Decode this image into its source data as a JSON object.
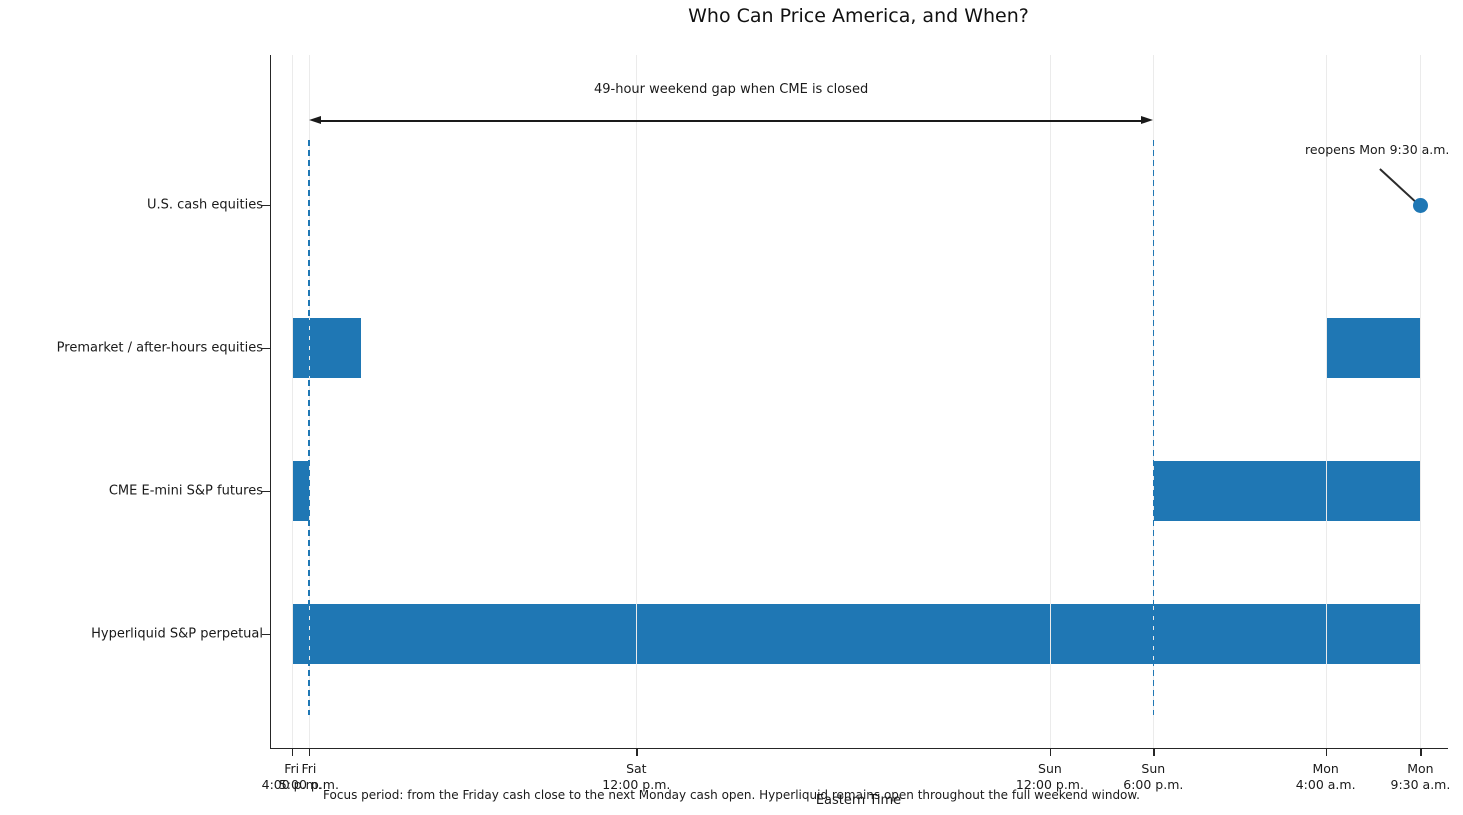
{
  "title": "Who Can Price America, and When?",
  "x_axis_title": "Eastern Time",
  "caption": "Focus period: from the Friday cash close to the next Monday cash open. Hyperliquid remains open throughout the full weekend window.",
  "annotations": {
    "gap_label": "49-hour weekend gap when CME is closed",
    "reopen_label": "reopens Mon 9:30 a.m."
  },
  "colors": {
    "bar": "#1f77b4",
    "dashed_line": "#1f77b4",
    "marker": "#1f77b4",
    "grid": "#ebebeb",
    "axis": "#262626",
    "annotation": "#1a1a1a"
  },
  "chart_data": {
    "type": "bar",
    "subtype": "horizontal-timeline-gantt",
    "time_unit": "hours after Friday 4:00 p.m. ET",
    "xlim": [
      -1.2,
      67.1
    ],
    "grid": "vertical, at every x tick, drawn above bars",
    "x_ticks": [
      {
        "t": 0,
        "lines": [
          "Fri",
          "4:00 p.m."
        ]
      },
      {
        "t": 1,
        "lines": [
          "Fri",
          "5:00 p.m."
        ]
      },
      {
        "t": 20,
        "lines": [
          "Sat",
          "12:00 p.m."
        ]
      },
      {
        "t": 44,
        "lines": [
          "Sun",
          "12:00 p.m."
        ]
      },
      {
        "t": 50,
        "lines": [
          "Sun",
          "6:00 p.m."
        ]
      },
      {
        "t": 60,
        "lines": [
          "Mon",
          "4:00 a.m."
        ]
      },
      {
        "t": 65.5,
        "lines": [
          "Mon",
          "9:30 a.m."
        ]
      }
    ],
    "categories": [
      "U.S. cash equities",
      "Premarket / after-hours equities",
      "CME E-mini S&P futures",
      "Hyperliquid S&P perpetual"
    ],
    "series": [
      {
        "category": "U.S. cash equities",
        "intervals": [],
        "marker_t": 65.5
      },
      {
        "category": "Premarket / after-hours equities",
        "intervals": [
          [
            0,
            4
          ],
          [
            60,
            65.5
          ]
        ]
      },
      {
        "category": "CME E-mini S&P futures",
        "intervals": [
          [
            0,
            1
          ],
          [
            50,
            65.5
          ]
        ]
      },
      {
        "category": "Hyperliquid S&P perpetual",
        "intervals": [
          [
            0,
            65.5
          ]
        ]
      }
    ],
    "dashed_vlines_t": [
      1,
      50
    ],
    "gap_arrow": {
      "from_t": 1,
      "to_t": 50
    },
    "legend": "none"
  }
}
